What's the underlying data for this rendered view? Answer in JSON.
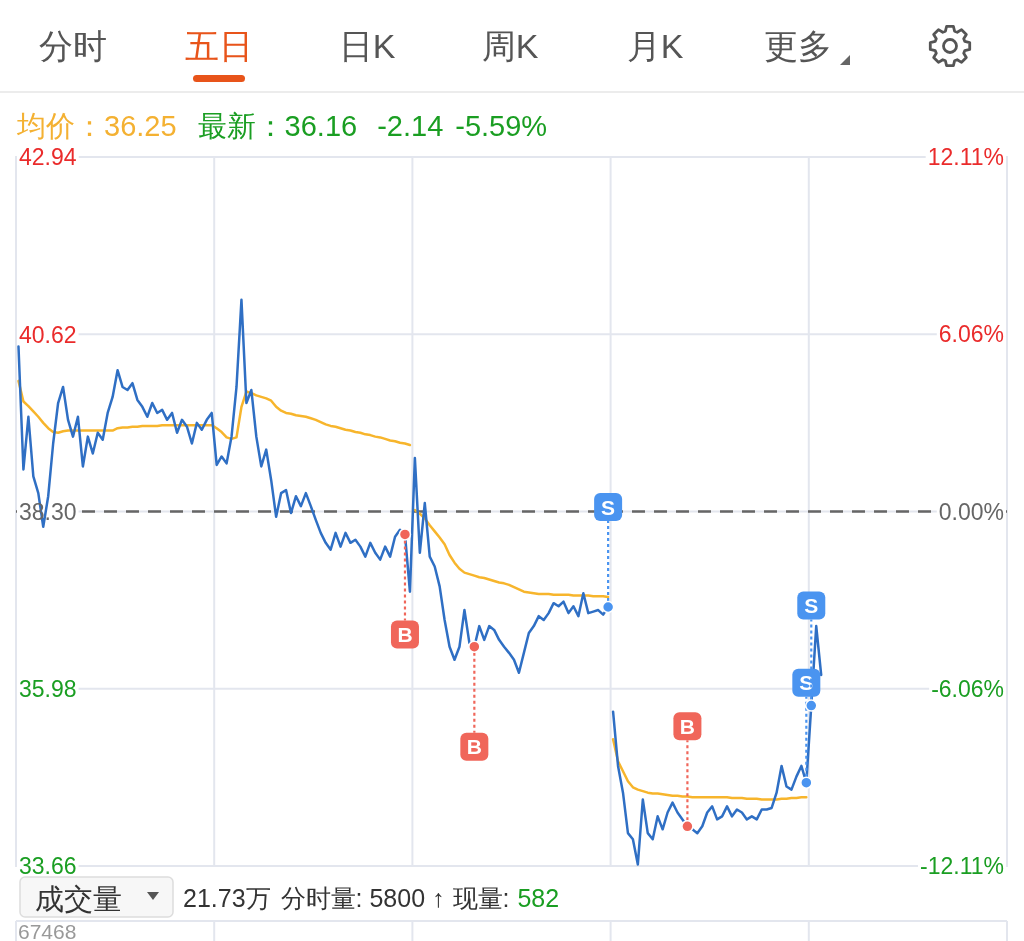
{
  "chart_data": {
    "type": "line",
    "annotations": [
      "分时",
      "五日",
      "日K",
      "周K",
      "月K",
      "更多",
      "均价：36.25",
      "最新：36.16",
      "-2.14",
      "-5.59%",
      "成交量",
      "21.73万",
      "分时量: 5800 ↑",
      "现量:",
      "582",
      "67468"
    ],
    "categories": [
      null,
      null,
      null,
      null,
      null,
      null,
      null,
      null,
      null,
      null,
      null,
      null,
      null,
      null,
      null,
      null,
      null,
      null,
      null,
      null,
      null,
      null,
      null,
      null,
      null,
      null,
      null,
      null,
      null,
      null,
      null,
      null,
      null,
      null,
      null,
      null,
      null,
      null,
      null,
      null,
      null,
      null,
      null,
      null,
      null,
      null,
      null,
      null,
      null,
      null,
      null,
      null,
      null,
      null,
      null,
      null,
      null,
      null,
      null,
      null,
      null,
      null,
      null,
      null,
      null,
      null,
      null,
      null,
      null,
      null,
      null,
      null,
      null,
      null,
      null,
      null,
      null,
      null,
      null,
      null,
      null,
      null,
      null,
      null,
      null,
      null,
      null,
      null,
      null,
      null,
      null,
      null,
      null,
      null,
      null,
      null,
      null,
      null,
      null,
      null,
      null,
      null,
      null,
      null,
      null,
      null,
      null,
      null,
      null,
      null,
      null,
      null,
      null,
      null,
      null,
      null,
      null,
      null,
      null,
      null,
      null,
      null,
      null,
      null,
      null,
      null,
      null,
      null,
      null,
      null,
      null,
      null,
      null,
      null,
      null,
      null,
      null,
      null,
      null,
      null,
      null,
      null,
      null,
      null,
      null,
      null,
      null,
      null,
      null,
      null,
      null,
      null,
      null,
      null,
      null,
      null,
      null,
      null,
      null,
      null,
      null,
      null,
      null,
      null,
      null,
      null,
      null,
      null,
      null,
      null,
      null,
      null,
      null,
      null,
      null,
      null,
      null,
      null,
      null,
      null,
      null,
      null,
      null,
      null,
      null,
      null,
      null,
      null,
      null,
      null,
      null,
      null,
      null,
      null,
      null,
      null,
      null,
      null,
      null,
      null
    ],
    "series": [
      {
        "color": "#2f6fc4",
        "values": [
          40.46,
          38.85,
          39.54,
          38.76,
          38.54,
          38.1,
          38.5,
          39.19,
          39.72,
          39.93,
          39.5,
          39.28,
          39.54,
          38.89,
          39.28,
          39.06,
          39.33,
          39.24,
          39.59,
          39.8,
          40.15,
          39.93,
          39.89,
          39.98,
          39.76,
          39.67,
          39.54,
          39.72,
          39.59,
          39.63,
          39.5,
          39.59,
          39.33,
          39.5,
          39.41,
          39.19,
          39.46,
          39.37,
          39.5,
          39.59,
          38.91,
          39.02,
          38.93,
          39.28,
          39.93,
          41.07,
          39.72,
          39.89,
          39.28,
          38.89,
          39.11,
          38.71,
          38.23,
          38.54,
          38.58,
          38.28,
          38.5,
          38.37,
          38.54,
          38.37,
          38.19,
          38.02,
          37.89,
          37.8,
          38.02,
          37.84,
          38.02,
          37.89,
          37.93,
          37.84,
          37.71,
          37.89,
          37.76,
          37.67,
          37.84,
          37.71,
          37.97,
          38.06,
          38.0,
          37.25,
          39.0,
          37.76,
          38.41,
          37.71,
          37.58,
          37.32,
          36.88,
          36.53,
          36.36,
          36.53,
          37.01,
          36.58,
          36.53,
          36.8,
          36.62,
          36.8,
          36.75,
          36.62,
          36.53,
          36.45,
          36.36,
          36.19,
          36.45,
          36.71,
          36.8,
          36.93,
          36.88,
          36.97,
          37.1,
          37.06,
          37.12,
          36.97,
          37.06,
          36.93,
          37.23,
          36.97,
          36.99,
          37.01,
          36.95,
          37.05,
          null,
          null,
          null,
          null,
          null,
          null,
          null,
          null,
          null,
          null,
          null,
          null,
          null,
          null,
          null,
          null,
          null,
          null,
          null,
          null,
          null,
          null,
          null,
          null,
          null,
          null,
          null,
          null,
          null,
          null,
          null,
          null,
          null,
          null,
          null,
          null,
          null,
          null,
          null,
          null,
          null,
          null,
          null,
          null,
          null,
          null,
          null,
          null,
          null,
          null,
          null,
          null,
          null,
          null,
          null,
          null,
          null,
          null,
          null,
          null,
          null,
          null,
          null,
          null,
          null,
          null,
          null,
          null,
          null,
          null,
          null,
          null,
          null,
          null,
          null,
          null,
          null,
          null,
          null,
          null
        ]
      },
      {
        "color": "#2f6fc4",
        "values": [
          null,
          null,
          null,
          null,
          null,
          null,
          null,
          null,
          null,
          null,
          null,
          null,
          null,
          null,
          null,
          null,
          null,
          null,
          null,
          null,
          null,
          null,
          null,
          null,
          null,
          null,
          null,
          null,
          null,
          null,
          null,
          null,
          null,
          null,
          null,
          null,
          null,
          null,
          null,
          null,
          null,
          null,
          null,
          null,
          null,
          null,
          null,
          null,
          null,
          null,
          null,
          null,
          null,
          null,
          null,
          null,
          null,
          null,
          null,
          null,
          null,
          null,
          null,
          null,
          null,
          null,
          null,
          null,
          null,
          null,
          null,
          null,
          null,
          null,
          null,
          null,
          null,
          null,
          null,
          null,
          null,
          null,
          null,
          null,
          null,
          null,
          null,
          null,
          null,
          null,
          null,
          null,
          null,
          null,
          null,
          null,
          null,
          null,
          null,
          null,
          null,
          null,
          null,
          null,
          null,
          null,
          null,
          null,
          null,
          null,
          null,
          null,
          null,
          null,
          null,
          null,
          null,
          null,
          null,
          null,
          35.68,
          34.97,
          34.62,
          34.09,
          34.01,
          33.68,
          34.53,
          34.09,
          34.01,
          34.31,
          34.14,
          34.36,
          34.49,
          34.36,
          34.27,
          34.18,
          34.14,
          34.09,
          34.18,
          34.36,
          34.44,
          34.27,
          34.31,
          34.44,
          34.31,
          34.4,
          34.36,
          34.27,
          34.31,
          34.27,
          34.4,
          34.4,
          34.42,
          34.62,
          34.97,
          34.7,
          34.66,
          34.83,
          34.97,
          34.75,
          35.76,
          36.8,
          36.16,
          null,
          null,
          null,
          null,
          null,
          null,
          null,
          null,
          null,
          null,
          null,
          null,
          null,
          null,
          null,
          null,
          null,
          null,
          null,
          null,
          null,
          null,
          null,
          null,
          null,
          null,
          null,
          null,
          null,
          null,
          null,
          null,
          null,
          null,
          null,
          null,
          null
        ]
      },
      {
        "color": "#f7b52c",
        "values": [
          40.01,
          39.74,
          39.68,
          39.61,
          39.54,
          39.46,
          39.39,
          39.34,
          39.33,
          39.35,
          39.36,
          39.36,
          39.36,
          39.36,
          39.36,
          39.36,
          39.36,
          39.36,
          39.36,
          39.36,
          39.39,
          39.4,
          39.4,
          39.41,
          39.41,
          39.42,
          39.42,
          39.42,
          39.42,
          39.43,
          39.43,
          39.43,
          39.43,
          39.43,
          39.43,
          39.43,
          39.43,
          39.43,
          39.43,
          39.43,
          39.39,
          39.34,
          39.27,
          39.25,
          39.27,
          39.67,
          39.87,
          39.85,
          39.82,
          39.8,
          39.78,
          39.75,
          39.67,
          39.62,
          39.59,
          39.58,
          39.56,
          39.55,
          39.54,
          39.52,
          39.5,
          39.47,
          39.44,
          39.42,
          39.41,
          39.39,
          39.37,
          39.36,
          39.34,
          39.33,
          39.31,
          39.3,
          39.28,
          39.27,
          39.25,
          39.23,
          39.22,
          39.2,
          39.19,
          39.17,
          null,
          null,
          null,
          null,
          null,
          null,
          null,
          null,
          null,
          null,
          null,
          null,
          null,
          null,
          null,
          null,
          null,
          null,
          null,
          null,
          null,
          null,
          null,
          null,
          null,
          null,
          null,
          null,
          null,
          null,
          null,
          null,
          null,
          null,
          null,
          null,
          null,
          null,
          null,
          null,
          null,
          null,
          null,
          null,
          null,
          null,
          null,
          null,
          null,
          null,
          null,
          null,
          null,
          null,
          null,
          null,
          null,
          null,
          null,
          null,
          null,
          null,
          null,
          null,
          null,
          null,
          null,
          null,
          null,
          null,
          null,
          null,
          null,
          null,
          null,
          null,
          null,
          null,
          null,
          null,
          null,
          null,
          null,
          null,
          null,
          null,
          null,
          null,
          null,
          null,
          null,
          null,
          null,
          null,
          null,
          null,
          null,
          null,
          null,
          null,
          null,
          null,
          null,
          null,
          null,
          null,
          null,
          null,
          null,
          null,
          null,
          null,
          null,
          null,
          null,
          null,
          null,
          null,
          null,
          null
        ]
      },
      {
        "color": "#f7b52c",
        "values": [
          null,
          null,
          null,
          null,
          null,
          null,
          null,
          null,
          null,
          null,
          null,
          null,
          null,
          null,
          null,
          null,
          null,
          null,
          null,
          null,
          null,
          null,
          null,
          null,
          null,
          null,
          null,
          null,
          null,
          null,
          null,
          null,
          null,
          null,
          null,
          null,
          null,
          null,
          null,
          null,
          null,
          null,
          null,
          null,
          null,
          null,
          null,
          null,
          null,
          null,
          null,
          null,
          null,
          null,
          null,
          null,
          null,
          null,
          null,
          null,
          null,
          null,
          null,
          null,
          null,
          null,
          null,
          null,
          null,
          null,
          null,
          null,
          null,
          null,
          null,
          null,
          null,
          null,
          null,
          null,
          38.32,
          38.27,
          38.21,
          38.12,
          38.04,
          37.96,
          37.87,
          37.73,
          37.63,
          37.55,
          37.5,
          37.48,
          37.46,
          37.44,
          37.43,
          37.41,
          37.39,
          37.37,
          37.36,
          37.34,
          37.31,
          37.28,
          37.25,
          37.24,
          37.23,
          37.22,
          37.22,
          37.22,
          37.21,
          37.21,
          37.21,
          37.21,
          37.2,
          37.2,
          37.2,
          37.2,
          37.19,
          37.19,
          37.19,
          37.18,
          null,
          null,
          null,
          null,
          null,
          null,
          null,
          null,
          null,
          null,
          null,
          null,
          null,
          null,
          null,
          null,
          null,
          null,
          null,
          null,
          null,
          null,
          null,
          null,
          null,
          null,
          null,
          null,
          null,
          null,
          null,
          null,
          null,
          null,
          null,
          null,
          null,
          null,
          null,
          null,
          null,
          null,
          null,
          null,
          null,
          null,
          null,
          null,
          null,
          null,
          null,
          null,
          null,
          null,
          null,
          null,
          null,
          null,
          null,
          null,
          null,
          null,
          null,
          null,
          null,
          null,
          null,
          null,
          null,
          null,
          null,
          null,
          null,
          null,
          null,
          null,
          null,
          null,
          null,
          null
        ]
      },
      {
        "color": "#f7b52c",
        "values": [
          null,
          null,
          null,
          null,
          null,
          null,
          null,
          null,
          null,
          null,
          null,
          null,
          null,
          null,
          null,
          null,
          null,
          null,
          null,
          null,
          null,
          null,
          null,
          null,
          null,
          null,
          null,
          null,
          null,
          null,
          null,
          null,
          null,
          null,
          null,
          null,
          null,
          null,
          null,
          null,
          null,
          null,
          null,
          null,
          null,
          null,
          null,
          null,
          null,
          null,
          null,
          null,
          null,
          null,
          null,
          null,
          null,
          null,
          null,
          null,
          null,
          null,
          null,
          null,
          null,
          null,
          null,
          null,
          null,
          null,
          null,
          null,
          null,
          null,
          null,
          null,
          null,
          null,
          null,
          null,
          null,
          null,
          null,
          null,
          null,
          null,
          null,
          null,
          null,
          null,
          null,
          null,
          null,
          null,
          null,
          null,
          null,
          null,
          null,
          null,
          null,
          null,
          null,
          null,
          null,
          null,
          null,
          null,
          null,
          null,
          null,
          null,
          null,
          null,
          null,
          null,
          null,
          null,
          null,
          null,
          35.32,
          35.03,
          34.9,
          34.77,
          34.69,
          34.66,
          34.64,
          34.62,
          34.61,
          34.61,
          34.6,
          34.59,
          34.58,
          34.58,
          34.57,
          34.57,
          34.56,
          34.56,
          34.56,
          34.56,
          34.56,
          34.56,
          34.56,
          34.56,
          34.55,
          34.55,
          34.55,
          34.54,
          34.54,
          34.54,
          34.53,
          34.53,
          34.53,
          34.53,
          34.54,
          34.54,
          34.55,
          34.55,
          34.56,
          34.56,
          null,
          null,
          null,
          null,
          null,
          null,
          null,
          null,
          null,
          null,
          null,
          null,
          null,
          null,
          null,
          null,
          null,
          null,
          null,
          null,
          null,
          null,
          null,
          null,
          null,
          null,
          null,
          null,
          null,
          null,
          null,
          null,
          null,
          null,
          null,
          null,
          null,
          null,
          null,
          null
        ]
      },
      {
        "type": "scatter",
        "color": "#f0665a",
        "values": [
          null,
          null,
          null,
          null,
          null,
          null,
          null,
          null,
          null,
          null,
          null,
          null,
          null,
          null,
          null,
          null,
          null,
          null,
          null,
          null,
          null,
          null,
          null,
          null,
          null,
          null,
          null,
          null,
          null,
          null,
          null,
          null,
          null,
          null,
          null,
          null,
          null,
          null,
          null,
          null,
          null,
          null,
          null,
          null,
          null,
          null,
          null,
          null,
          null,
          null,
          null,
          null,
          null,
          null,
          null,
          null,
          null,
          null,
          null,
          null,
          null,
          null,
          null,
          null,
          null,
          null,
          null,
          null,
          null,
          null,
          null,
          null,
          null,
          null,
          null,
          null,
          null,
          null,
          38.0,
          null,
          null,
          null,
          null,
          null,
          null,
          null,
          null,
          null,
          null,
          null,
          null,
          null,
          36.53,
          null,
          null,
          null,
          null,
          null,
          null,
          null,
          null,
          null,
          null,
          null,
          null,
          null,
          null,
          null,
          null,
          null,
          null,
          null,
          null,
          null,
          null,
          null,
          null,
          null,
          null,
          null,
          null,
          null,
          null,
          null,
          null,
          null,
          null,
          null,
          null,
          null,
          null,
          null,
          null,
          null,
          null,
          34.18,
          null,
          null,
          null,
          null,
          null,
          null,
          null,
          null,
          null,
          null,
          null,
          null,
          null,
          null,
          null,
          null,
          null,
          null,
          null,
          null,
          null,
          null,
          null,
          null,
          null,
          null,
          null,
          null,
          null,
          null,
          null,
          null,
          null,
          null,
          null,
          null,
          null,
          null,
          null,
          null,
          null,
          null,
          null,
          null,
          null,
          null,
          null,
          null,
          null,
          null,
          null,
          null,
          null,
          null,
          null,
          null,
          null,
          null,
          null,
          null,
          null,
          null,
          null,
          null
        ],
        "value_labels": [
          null,
          null,
          null,
          null,
          null,
          null,
          null,
          null,
          null,
          null,
          null,
          null,
          null,
          null,
          null,
          null,
          null,
          null,
          null,
          null,
          null,
          null,
          null,
          null,
          null,
          null,
          null,
          null,
          null,
          null,
          null,
          null,
          null,
          null,
          null,
          null,
          null,
          null,
          null,
          null,
          null,
          null,
          null,
          null,
          null,
          null,
          null,
          null,
          null,
          null,
          null,
          null,
          null,
          null,
          null,
          null,
          null,
          null,
          null,
          null,
          null,
          null,
          null,
          null,
          null,
          null,
          null,
          null,
          null,
          null,
          null,
          null,
          null,
          null,
          null,
          null,
          null,
          null,
          "B",
          null,
          null,
          null,
          null,
          null,
          null,
          null,
          null,
          null,
          null,
          null,
          null,
          null,
          "B",
          null,
          null,
          null,
          null,
          null,
          null,
          null,
          null,
          null,
          null,
          null,
          null,
          null,
          null,
          null,
          null,
          null,
          null,
          null,
          null,
          null,
          null,
          null,
          null,
          null,
          null,
          null,
          null,
          null,
          null,
          null,
          null,
          null,
          null,
          null,
          null,
          null,
          null,
          null,
          null,
          null,
          null,
          "B",
          null,
          null,
          null,
          null,
          null,
          null,
          null,
          null,
          null,
          null,
          null,
          null,
          null,
          null,
          null,
          null,
          null,
          null,
          null,
          null,
          null,
          null,
          null,
          null,
          null,
          null,
          null,
          null,
          null,
          null,
          null,
          null,
          null,
          null,
          null,
          null,
          null,
          null,
          null,
          null,
          null,
          null,
          null,
          null,
          null,
          null,
          null,
          null,
          null,
          null,
          null,
          null,
          null,
          null,
          null,
          null,
          null,
          null,
          null,
          null,
          null,
          null,
          null,
          null
        ]
      },
      {
        "type": "scatter",
        "color": "#4a94f0",
        "values": [
          null,
          null,
          null,
          null,
          null,
          null,
          null,
          null,
          null,
          null,
          null,
          null,
          null,
          null,
          null,
          null,
          null,
          null,
          null,
          null,
          null,
          null,
          null,
          null,
          null,
          null,
          null,
          null,
          null,
          null,
          null,
          null,
          null,
          null,
          null,
          null,
          null,
          null,
          null,
          null,
          null,
          null,
          null,
          null,
          null,
          null,
          null,
          null,
          null,
          null,
          null,
          null,
          null,
          null,
          null,
          null,
          null,
          null,
          null,
          null,
          null,
          null,
          null,
          null,
          null,
          null,
          null,
          null,
          null,
          null,
          null,
          null,
          null,
          null,
          null,
          null,
          null,
          null,
          null,
          null,
          null,
          null,
          null,
          null,
          null,
          null,
          null,
          null,
          null,
          null,
          null,
          null,
          null,
          null,
          null,
          null,
          null,
          null,
          null,
          null,
          null,
          null,
          null,
          null,
          null,
          null,
          null,
          null,
          null,
          null,
          null,
          null,
          null,
          null,
          null,
          null,
          null,
          null,
          null,
          37.05,
          null,
          null,
          null,
          null,
          null,
          null,
          null,
          null,
          null,
          null,
          null,
          null,
          null,
          null,
          null,
          null,
          null,
          null,
          null,
          null,
          null,
          null,
          null,
          null,
          null,
          null,
          null,
          null,
          null,
          null,
          null,
          null,
          null,
          null,
          null,
          null,
          null,
          null,
          null,
          34.75,
          35.76,
          null,
          null,
          null,
          null,
          null,
          null,
          null,
          null,
          null,
          null,
          null,
          null,
          null,
          null,
          null,
          null,
          null,
          null,
          null,
          null,
          null,
          null,
          null,
          null,
          null,
          null,
          null,
          null,
          null,
          null,
          null,
          null,
          null,
          null,
          null,
          null,
          null,
          null,
          null
        ],
        "value_labels": [
          null,
          null,
          null,
          null,
          null,
          null,
          null,
          null,
          null,
          null,
          null,
          null,
          null,
          null,
          null,
          null,
          null,
          null,
          null,
          null,
          null,
          null,
          null,
          null,
          null,
          null,
          null,
          null,
          null,
          null,
          null,
          null,
          null,
          null,
          null,
          null,
          null,
          null,
          null,
          null,
          null,
          null,
          null,
          null,
          null,
          null,
          null,
          null,
          null,
          null,
          null,
          null,
          null,
          null,
          null,
          null,
          null,
          null,
          null,
          null,
          null,
          null,
          null,
          null,
          null,
          null,
          null,
          null,
          null,
          null,
          null,
          null,
          null,
          null,
          null,
          null,
          null,
          null,
          null,
          null,
          null,
          null,
          null,
          null,
          null,
          null,
          null,
          null,
          null,
          null,
          null,
          null,
          null,
          null,
          null,
          null,
          null,
          null,
          null,
          null,
          null,
          null,
          null,
          null,
          null,
          null,
          null,
          null,
          null,
          null,
          null,
          null,
          null,
          null,
          null,
          null,
          null,
          null,
          null,
          "S",
          null,
          null,
          null,
          null,
          null,
          null,
          null,
          null,
          null,
          null,
          null,
          null,
          null,
          null,
          null,
          null,
          null,
          null,
          null,
          null,
          null,
          null,
          null,
          null,
          null,
          null,
          null,
          null,
          null,
          null,
          null,
          null,
          null,
          null,
          null,
          null,
          null,
          null,
          null,
          "S",
          "S",
          null,
          null,
          null,
          null,
          null,
          null,
          null,
          null,
          null,
          null,
          null,
          null,
          null,
          null,
          null,
          null,
          null,
          null,
          null,
          null,
          null,
          null,
          null,
          null,
          null,
          null,
          null,
          null,
          null,
          null,
          null,
          null,
          null,
          null,
          null,
          null,
          null,
          null,
          null
        ]
      }
    ],
    "ylim": [
      33.66,
      42.94
    ],
    "yticks": [
      33.66,
      35.98,
      {
        "value": 38.3,
        "label": "38.30"
      },
      40.62,
      42.94
    ],
    "y2lim": [
      -12.11,
      12.11
    ],
    "y2ticks": [
      {
        "value": -12.11,
        "label": "-12.11%"
      },
      {
        "value": -6.06,
        "label": "-6.06%"
      },
      {
        "value": 0,
        "label": "0.00%"
      },
      {
        "value": 6.06,
        "label": "6.06%"
      },
      {
        "value": 12.11,
        "label": "12.11%"
      }
    ],
    "ref_lines": [
      {
        "axis": "y",
        "value": 38.3,
        "color": "#666666",
        "line_style": "dashed"
      }
    ],
    "grid": "y",
    "tick_labels": "y"
  }
}
